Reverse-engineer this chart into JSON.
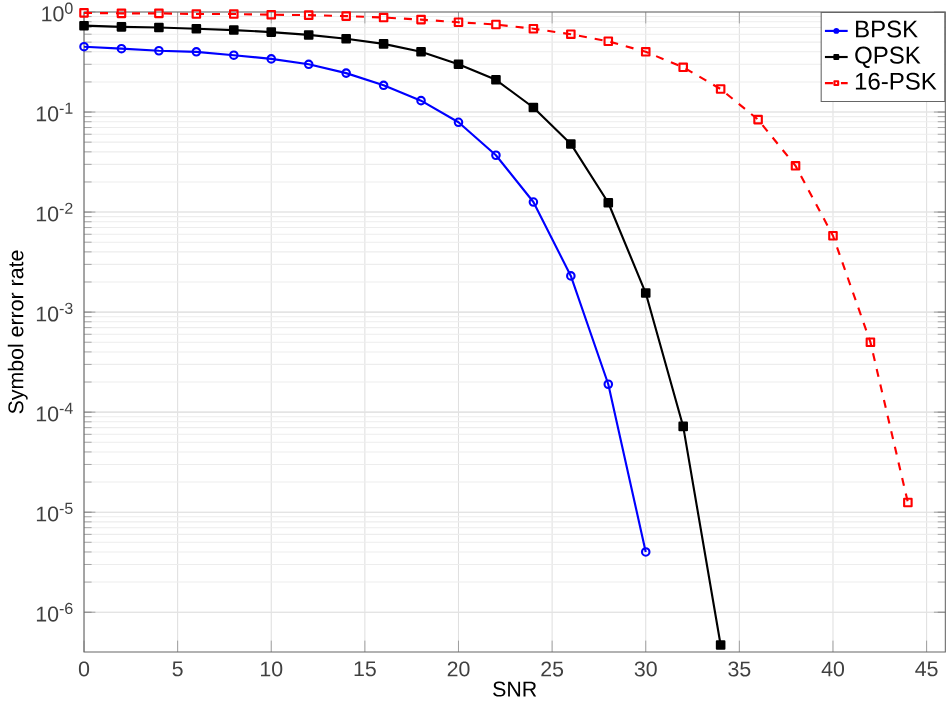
{
  "chart_data": {
    "type": "line",
    "xlabel": "SNR",
    "ylabel": "Symbol error rate",
    "x": [
      0,
      2,
      4,
      6,
      8,
      10,
      12,
      14,
      16,
      18,
      20,
      22,
      24,
      26,
      28,
      30,
      32,
      34,
      36,
      38,
      40,
      42,
      44
    ],
    "series": [
      {
        "name": "BPSK",
        "color": "#0000ff",
        "marker": "circle",
        "line_style": "solid",
        "x": [
          0,
          2,
          4,
          6,
          8,
          10,
          12,
          14,
          16,
          18,
          20,
          22,
          24,
          26,
          28,
          30
        ],
        "values": [
          0.45,
          0.43,
          0.41,
          0.4,
          0.37,
          0.34,
          0.3,
          0.245,
          0.185,
          0.13,
          0.079,
          0.037,
          0.0126,
          0.0023,
          0.00019,
          4e-06
        ]
      },
      {
        "name": "QPSK",
        "color": "#000000",
        "marker": "square",
        "line_style": "solid",
        "x": [
          0,
          2,
          4,
          6,
          8,
          10,
          12,
          14,
          16,
          18,
          20,
          22,
          24,
          26,
          28,
          30,
          32,
          34
        ],
        "values": [
          0.73,
          0.71,
          0.7,
          0.68,
          0.66,
          0.63,
          0.59,
          0.54,
          0.48,
          0.4,
          0.3,
          0.21,
          0.111,
          0.048,
          0.0124,
          0.00155,
          7.2e-05,
          4.7e-07
        ]
      },
      {
        "name": "16-PSK",
        "color": "#ff0000",
        "marker": "square",
        "line_style": "dashed",
        "values": [
          0.98,
          0.97,
          0.97,
          0.955,
          0.955,
          0.94,
          0.93,
          0.91,
          0.88,
          0.84,
          0.79,
          0.75,
          0.68,
          0.6,
          0.51,
          0.4,
          0.28,
          0.17,
          0.084,
          0.029,
          0.0058,
          0.0005,
          1.25e-05
        ]
      }
    ],
    "xlim": [
      0,
      46
    ],
    "xticks": [
      0,
      5,
      10,
      15,
      20,
      25,
      30,
      35,
      40,
      45
    ],
    "ylim": [
      4e-07,
      1
    ],
    "log": "y",
    "yticks": [
      {
        "value": 1e-06,
        "label": "10$^{-6}$"
      },
      {
        "value": 1e-05,
        "label": "10$^{-5}$"
      },
      {
        "value": 0.0001,
        "label": "10$^{-4}$"
      },
      {
        "value": 0.001,
        "label": "10$^{-3}$"
      },
      {
        "value": 0.01,
        "label": "10$^{-2}$"
      },
      {
        "value": 0.1,
        "label": "10$^{-1}$"
      },
      {
        "value": 1,
        "label": "10$^{0}$"
      }
    ],
    "grid": true,
    "legend": "top right"
  }
}
